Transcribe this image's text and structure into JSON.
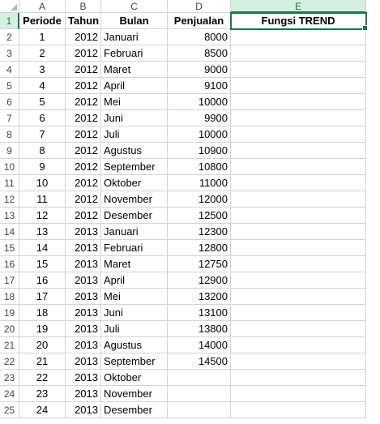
{
  "columns": [
    "A",
    "B",
    "C",
    "D",
    "E"
  ],
  "selected_cell": "E1",
  "header_row": {
    "row": "1",
    "periode": "Periode",
    "tahun": "Tahun",
    "bulan": "Bulan",
    "penjualan": "Penjualan",
    "trend": "Fungsi TREND"
  },
  "rows": [
    {
      "row": "2",
      "periode": "1",
      "tahun": "2012",
      "bulan": "Januari",
      "penjualan": "8000"
    },
    {
      "row": "3",
      "periode": "2",
      "tahun": "2012",
      "bulan": "Februari",
      "penjualan": "8500"
    },
    {
      "row": "4",
      "periode": "3",
      "tahun": "2012",
      "bulan": "Maret",
      "penjualan": "9000"
    },
    {
      "row": "5",
      "periode": "4",
      "tahun": "2012",
      "bulan": "April",
      "penjualan": "9100"
    },
    {
      "row": "6",
      "periode": "5",
      "tahun": "2012",
      "bulan": "Mei",
      "penjualan": "10000"
    },
    {
      "row": "7",
      "periode": "6",
      "tahun": "2012",
      "bulan": "Juni",
      "penjualan": "9900"
    },
    {
      "row": "8",
      "periode": "7",
      "tahun": "2012",
      "bulan": "Juli",
      "penjualan": "10000"
    },
    {
      "row": "9",
      "periode": "8",
      "tahun": "2012",
      "bulan": "Agustus",
      "penjualan": "10900"
    },
    {
      "row": "10",
      "periode": "9",
      "tahun": "2012",
      "bulan": "September",
      "penjualan": "10800"
    },
    {
      "row": "11",
      "periode": "10",
      "tahun": "2012",
      "bulan": "Oktober",
      "penjualan": "11000"
    },
    {
      "row": "12",
      "periode": "11",
      "tahun": "2012",
      "bulan": "November",
      "penjualan": "12000"
    },
    {
      "row": "13",
      "periode": "12",
      "tahun": "2012",
      "bulan": "Desember",
      "penjualan": "12500"
    },
    {
      "row": "14",
      "periode": "13",
      "tahun": "2013",
      "bulan": "Januari",
      "penjualan": "12300"
    },
    {
      "row": "15",
      "periode": "14",
      "tahun": "2013",
      "bulan": "Februari",
      "penjualan": "12800"
    },
    {
      "row": "16",
      "periode": "15",
      "tahun": "2013",
      "bulan": "Maret",
      "penjualan": "12750"
    },
    {
      "row": "17",
      "periode": "16",
      "tahun": "2013",
      "bulan": "April",
      "penjualan": "12900"
    },
    {
      "row": "18",
      "periode": "17",
      "tahun": "2013",
      "bulan": "Mei",
      "penjualan": "13200"
    },
    {
      "row": "19",
      "periode": "18",
      "tahun": "2013",
      "bulan": "Juni",
      "penjualan": "13100"
    },
    {
      "row": "20",
      "periode": "19",
      "tahun": "2013",
      "bulan": "Juli",
      "penjualan": "13800"
    },
    {
      "row": "21",
      "periode": "20",
      "tahun": "2013",
      "bulan": "Agustus",
      "penjualan": "14000"
    },
    {
      "row": "22",
      "periode": "21",
      "tahun": "2013",
      "bulan": "September",
      "penjualan": "14500"
    },
    {
      "row": "23",
      "periode": "22",
      "tahun": "2013",
      "bulan": "Oktober",
      "penjualan": ""
    },
    {
      "row": "24",
      "periode": "23",
      "tahun": "2013",
      "bulan": "November",
      "penjualan": ""
    },
    {
      "row": "25",
      "periode": "24",
      "tahun": "2013",
      "bulan": "Desember",
      "penjualan": ""
    }
  ],
  "colors": {
    "accent": "#217346",
    "header_highlight": "#d3f0e0",
    "gridline": "#d4d4d4"
  }
}
